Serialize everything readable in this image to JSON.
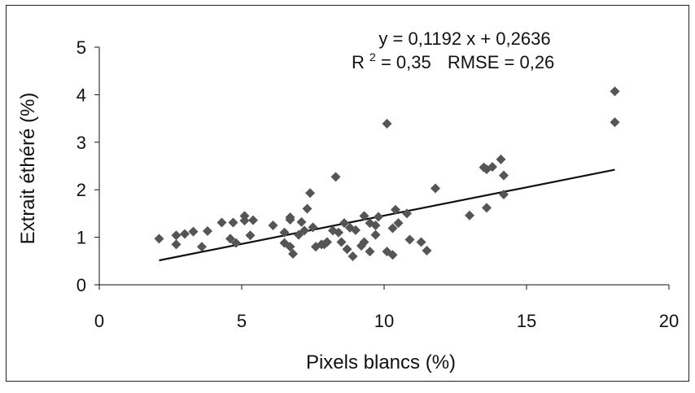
{
  "chart_data": {
    "type": "scatter",
    "xlabel": "Pixels blancs (%)",
    "ylabel": "Extrait éthéré (%)",
    "xlim": [
      0,
      20
    ],
    "ylim": [
      0,
      5
    ],
    "x_ticks": [
      0,
      5,
      10,
      15,
      20
    ],
    "y_ticks": [
      0,
      1,
      2,
      3,
      4,
      5
    ],
    "grid": false,
    "legend": "none",
    "marker": "diamond",
    "colors": {
      "points": "#555555",
      "trendline": "#111111",
      "axes": "#111111"
    },
    "annotations": {
      "equation": "y = 0,1192 x  + 0,2636",
      "r2_label": "R",
      "r2_sup": "2",
      "r2_value": " = 0,35",
      "rmse": "RMSE = 0,26"
    },
    "trendline": {
      "slope": 0.1192,
      "intercept": 0.2636,
      "x_start": 2.1,
      "x_end": 18.1
    },
    "series": [
      {
        "points": [
          [
            2.1,
            0.97
          ],
          [
            2.7,
            0.85
          ],
          [
            2.7,
            1.04
          ],
          [
            3.0,
            1.07
          ],
          [
            3.3,
            1.12
          ],
          [
            3.6,
            0.8
          ],
          [
            3.8,
            1.13
          ],
          [
            4.3,
            1.31
          ],
          [
            4.6,
            0.97
          ],
          [
            4.7,
            1.31
          ],
          [
            4.8,
            0.88
          ],
          [
            5.1,
            1.35
          ],
          [
            5.1,
            1.45
          ],
          [
            5.3,
            1.04
          ],
          [
            5.4,
            1.36
          ],
          [
            6.1,
            1.25
          ],
          [
            6.5,
            1.1
          ],
          [
            6.5,
            0.88
          ],
          [
            6.7,
            1.37
          ],
          [
            6.7,
            1.42
          ],
          [
            6.7,
            0.8
          ],
          [
            6.8,
            0.65
          ],
          [
            7.0,
            1.05
          ],
          [
            7.1,
            1.32
          ],
          [
            7.2,
            1.14
          ],
          [
            7.3,
            1.6
          ],
          [
            7.4,
            1.93
          ],
          [
            7.5,
            1.21
          ],
          [
            7.6,
            0.8
          ],
          [
            7.8,
            0.85
          ],
          [
            7.9,
            0.85
          ],
          [
            8.0,
            0.9
          ],
          [
            8.2,
            1.14
          ],
          [
            8.3,
            2.27
          ],
          [
            8.4,
            1.1
          ],
          [
            8.5,
            0.9
          ],
          [
            8.6,
            1.3
          ],
          [
            8.7,
            0.75
          ],
          [
            8.8,
            1.2
          ],
          [
            8.9,
            0.6
          ],
          [
            9.0,
            1.15
          ],
          [
            9.2,
            0.82
          ],
          [
            9.3,
            1.45
          ],
          [
            9.3,
            0.9
          ],
          [
            9.5,
            0.7
          ],
          [
            9.5,
            1.3
          ],
          [
            9.7,
            1.05
          ],
          [
            9.7,
            1.25
          ],
          [
            9.8,
            1.43
          ],
          [
            10.1,
            3.39
          ],
          [
            10.1,
            0.7
          ],
          [
            10.3,
            0.63
          ],
          [
            10.3,
            1.19
          ],
          [
            10.4,
            1.58
          ],
          [
            10.5,
            1.3
          ],
          [
            10.8,
            1.5
          ],
          [
            10.9,
            0.95
          ],
          [
            11.3,
            0.9
          ],
          [
            11.5,
            0.72
          ],
          [
            11.8,
            2.03
          ],
          [
            13.0,
            1.46
          ],
          [
            13.5,
            2.47
          ],
          [
            13.6,
            2.43
          ],
          [
            13.6,
            1.62
          ],
          [
            13.8,
            2.48
          ],
          [
            14.1,
            2.64
          ],
          [
            14.2,
            1.9
          ],
          [
            14.2,
            2.3
          ],
          [
            18.1,
            4.07
          ],
          [
            18.1,
            3.42
          ]
        ]
      }
    ]
  }
}
